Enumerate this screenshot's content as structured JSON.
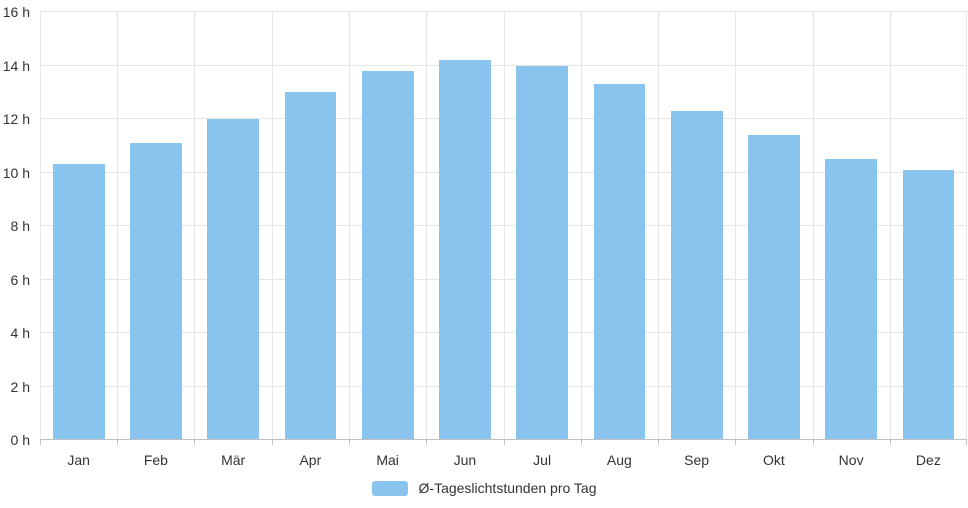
{
  "chart": {
    "background": "#ffffff",
    "text_color": "#333333",
    "grid_color": "#e6e6e6",
    "axis_line_color": "#c0c0c0"
  },
  "legend": {
    "label": "Ø-Tageslichtstunden pro Tag",
    "swatch_color": "#89c4ef"
  },
  "chart_data": {
    "type": "bar",
    "title": "",
    "xlabel": "",
    "ylabel": "",
    "categories": [
      "Jan",
      "Feb",
      "Mär",
      "Apr",
      "Mai",
      "Jun",
      "Jul",
      "Aug",
      "Sep",
      "Okt",
      "Nov",
      "Dez"
    ],
    "values": [
      10.3,
      11.1,
      12.0,
      13.0,
      13.8,
      14.2,
      14.0,
      13.3,
      12.3,
      11.4,
      10.5,
      10.1
    ],
    "series_name": "Ø-Tageslichtstunden pro Tag",
    "ylim": [
      0,
      16
    ],
    "ytick_step": 2,
    "y_tick_labels": [
      "0 h",
      "2 h",
      "4 h",
      "6 h",
      "8 h",
      "10 h",
      "12 h",
      "14 h",
      "16 h"
    ],
    "grid": true,
    "legend_position": "bottom",
    "bar_color": "#89c4ef"
  }
}
